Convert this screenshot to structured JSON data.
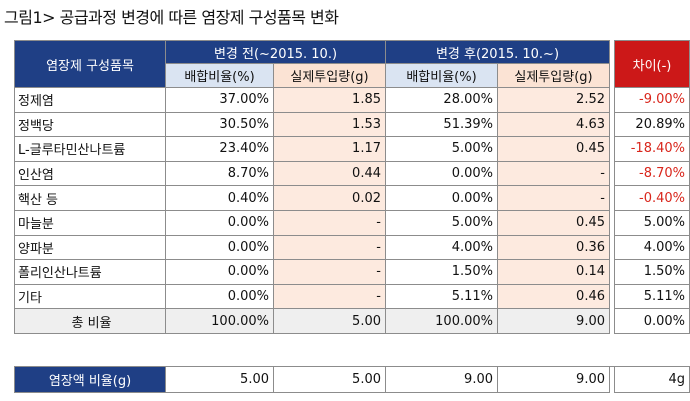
{
  "title": "그림1> 공급과정 변경에 따른 염장제 구성품목 변화",
  "table": {
    "header_item": "염장제 구성품목",
    "header_before": "변경 전(~2015. 10.)",
    "header_after": "변경 후(2015. 10.~)",
    "header_diff": "차이(-)",
    "sub_ratio": "배합비율(%)",
    "sub_amount": "실제투입량(g)",
    "rows": [
      {
        "name": "정제염",
        "before_ratio": "37.00%",
        "before_amount": "1.85",
        "after_ratio": "28.00%",
        "after_amount": "2.52",
        "diff": "-9.00%"
      },
      {
        "name": "정백당",
        "before_ratio": "30.50%",
        "before_amount": "1.53",
        "after_ratio": "51.39%",
        "after_amount": "4.63",
        "diff": "20.89%"
      },
      {
        "name": "L-글루타민산나트륨",
        "before_ratio": "23.40%",
        "before_amount": "1.17",
        "after_ratio": "5.00%",
        "after_amount": "0.45",
        "diff": "-18.40%"
      },
      {
        "name": "인산염",
        "before_ratio": "8.70%",
        "before_amount": "0.44",
        "after_ratio": "0.00%",
        "after_amount": "-",
        "diff": "-8.70%"
      },
      {
        "name": "핵산 등",
        "before_ratio": "0.40%",
        "before_amount": "0.02",
        "after_ratio": "0.00%",
        "after_amount": "-",
        "diff": "-0.40%"
      },
      {
        "name": "마늘분",
        "before_ratio": "0.00%",
        "before_amount": "-",
        "after_ratio": "5.00%",
        "after_amount": "0.45",
        "diff": "5.00%"
      },
      {
        "name": "양파분",
        "before_ratio": "0.00%",
        "before_amount": "-",
        "after_ratio": "4.00%",
        "after_amount": "0.36",
        "diff": "4.00%"
      },
      {
        "name": "폴리인산나트륨",
        "before_ratio": "0.00%",
        "before_amount": "-",
        "after_ratio": "1.50%",
        "after_amount": "0.14",
        "diff": "1.50%"
      },
      {
        "name": "기타",
        "before_ratio": "0.00%",
        "before_amount": "-",
        "after_ratio": "5.11%",
        "after_amount": "0.46",
        "diff": "5.11%"
      }
    ],
    "total": {
      "name": "총 비율",
      "before_ratio": "100.00%",
      "before_amount": "5.00",
      "after_ratio": "100.00%",
      "after_amount": "9.00",
      "diff": "0.00%"
    }
  },
  "summary": {
    "label": "염장액 비율(g)",
    "before_ratio": "5.00",
    "before_amount": "5.00",
    "after_ratio": "9.00",
    "after_amount": "9.00",
    "diff": "4g"
  },
  "colors": {
    "navy_header": "#1f3f85",
    "light_blue_header": "#dae4f2",
    "peach_header": "#fbe3d4",
    "peach_cells": "#fdeadf",
    "red_header": "#cc1818",
    "negative_text": "#d9261c",
    "total_row": "#efefef"
  }
}
